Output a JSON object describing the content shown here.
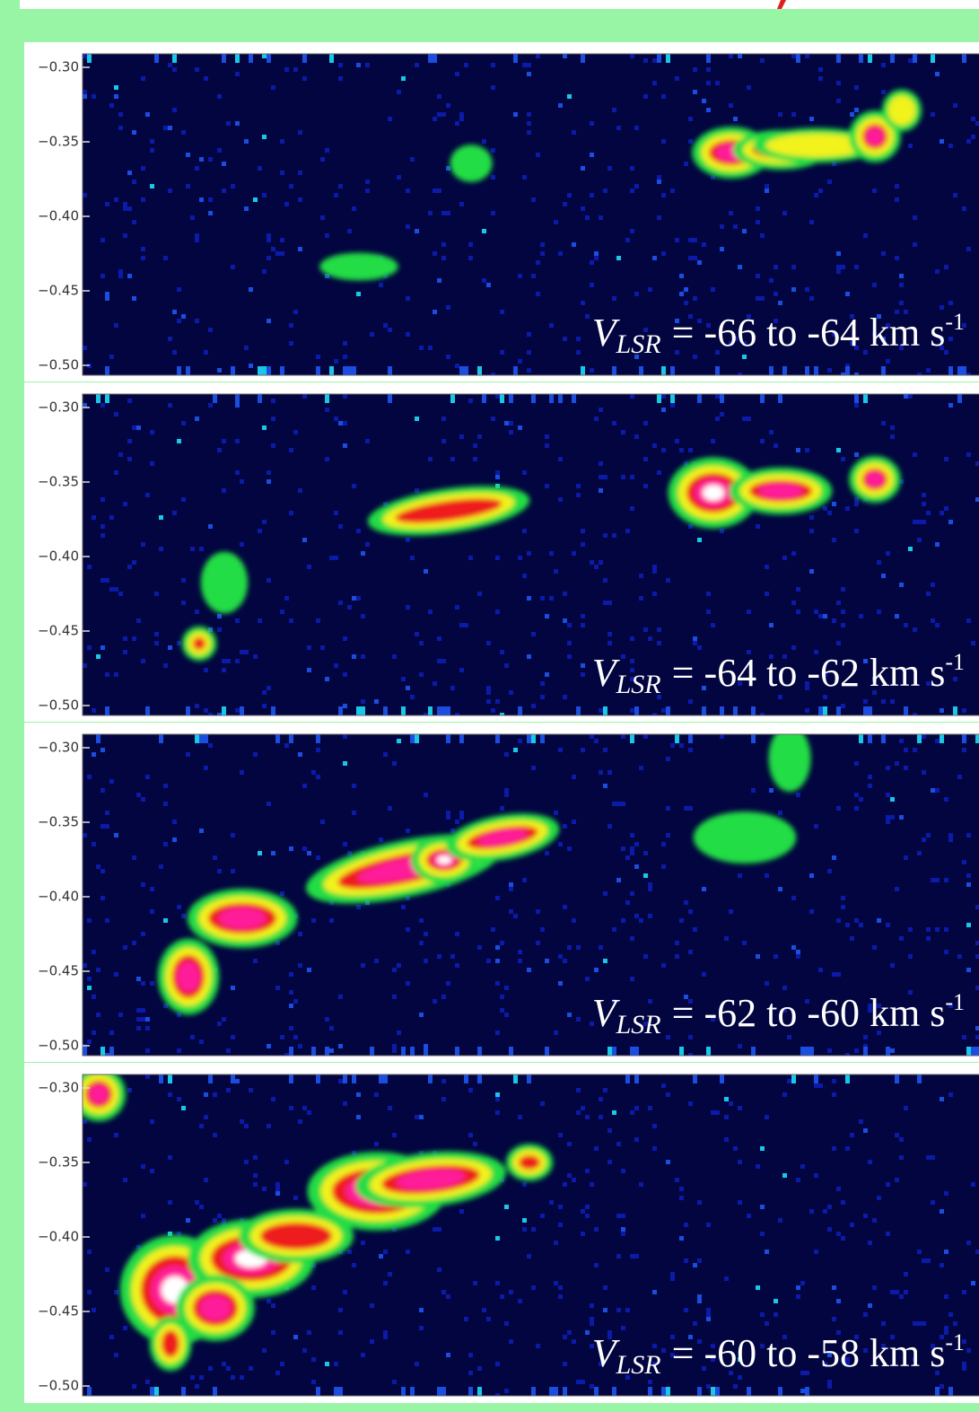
{
  "y_ticks": [
    "−0.30",
    "−0.35",
    "−0.40",
    "−0.45",
    "−0.50"
  ],
  "panels": [
    {
      "velocity_label": {
        "symbol": "V",
        "subscript": "LSR",
        "text": "= -66 to -64 km s",
        "superscript": "-1"
      }
    },
    {
      "velocity_label": {
        "symbol": "V",
        "subscript": "LSR",
        "text": "= -64 to -62 km s",
        "superscript": "-1"
      }
    },
    {
      "velocity_label": {
        "symbol": "V",
        "subscript": "LSR",
        "text": "= -62 to -60 km s",
        "superscript": "-1"
      }
    },
    {
      "velocity_label": {
        "symbol": "V",
        "subscript": "LSR",
        "text": "= -60 to -58 km s",
        "superscript": "-1"
      }
    }
  ]
}
